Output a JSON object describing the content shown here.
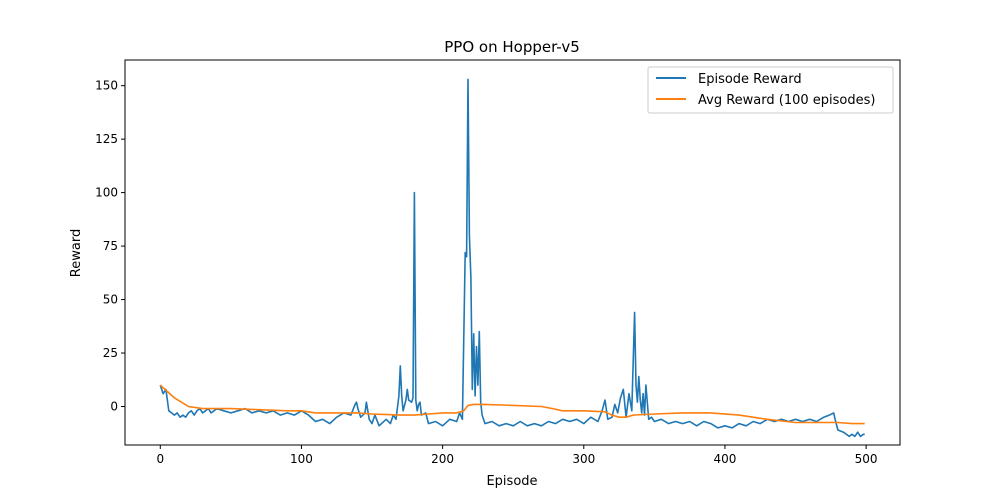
{
  "chart_data": {
    "type": "line",
    "title": "PPO on Hopper-v5",
    "xlabel": "Episode",
    "ylabel": "Reward",
    "xlim": [
      -25,
      524
    ],
    "ylim": [
      -18,
      162
    ],
    "xticks": [
      0,
      100,
      200,
      300,
      400,
      500
    ],
    "yticks": [
      0,
      25,
      50,
      75,
      100,
      125,
      150
    ],
    "grid": false,
    "legend_position": "top-right",
    "series": [
      {
        "name": "Episode Reward",
        "color": "#1f77b4",
        "points": [
          [
            0,
            10
          ],
          [
            2,
            6
          ],
          [
            4,
            8
          ],
          [
            6,
            -2
          ],
          [
            8,
            -3
          ],
          [
            10,
            -4
          ],
          [
            12,
            -3
          ],
          [
            14,
            -5
          ],
          [
            16,
            -4
          ],
          [
            18,
            -5
          ],
          [
            20,
            -3
          ],
          [
            22,
            -2
          ],
          [
            24,
            -4
          ],
          [
            26,
            -2
          ],
          [
            28,
            -1
          ],
          [
            30,
            -3
          ],
          [
            32,
            -2
          ],
          [
            34,
            -1
          ],
          [
            36,
            -3
          ],
          [
            38,
            -2
          ],
          [
            40,
            -1
          ],
          [
            45,
            -2
          ],
          [
            50,
            -3
          ],
          [
            55,
            -2
          ],
          [
            60,
            -1
          ],
          [
            65,
            -3
          ],
          [
            70,
            -2
          ],
          [
            75,
            -3
          ],
          [
            80,
            -2
          ],
          [
            85,
            -4
          ],
          [
            90,
            -3
          ],
          [
            95,
            -4
          ],
          [
            100,
            -2
          ],
          [
            105,
            -4
          ],
          [
            110,
            -7
          ],
          [
            115,
            -6
          ],
          [
            120,
            -8
          ],
          [
            125,
            -5
          ],
          [
            130,
            -3
          ],
          [
            135,
            -4
          ],
          [
            138,
            1
          ],
          [
            139,
            2
          ],
          [
            140,
            -1
          ],
          [
            142,
            -5
          ],
          [
            145,
            -3
          ],
          [
            146,
            2
          ],
          [
            148,
            -6
          ],
          [
            150,
            -8
          ],
          [
            152,
            -4
          ],
          [
            155,
            -9
          ],
          [
            160,
            -6
          ],
          [
            163,
            -8
          ],
          [
            165,
            -4
          ],
          [
            167,
            -6
          ],
          [
            169,
            5
          ],
          [
            170,
            19
          ],
          [
            171,
            5
          ],
          [
            172,
            -2
          ],
          [
            174,
            3
          ],
          [
            175,
            8
          ],
          [
            176,
            3
          ],
          [
            178,
            2
          ],
          [
            179,
            4
          ],
          [
            180,
            100
          ],
          [
            181,
            3
          ],
          [
            182,
            -2
          ],
          [
            183,
            1
          ],
          [
            184,
            2
          ],
          [
            185,
            -4
          ],
          [
            188,
            -3
          ],
          [
            190,
            -8
          ],
          [
            195,
            -7
          ],
          [
            200,
            -9
          ],
          [
            205,
            -6
          ],
          [
            210,
            -7
          ],
          [
            212,
            -3
          ],
          [
            214,
            -6
          ],
          [
            216,
            72
          ],
          [
            217,
            70
          ],
          [
            218,
            153
          ],
          [
            219,
            80
          ],
          [
            220,
            60
          ],
          [
            221,
            8
          ],
          [
            222,
            34
          ],
          [
            223,
            5
          ],
          [
            224,
            28
          ],
          [
            225,
            10
          ],
          [
            226,
            35
          ],
          [
            227,
            2
          ],
          [
            228,
            -4
          ],
          [
            230,
            -8
          ],
          [
            235,
            -7
          ],
          [
            240,
            -9
          ],
          [
            245,
            -8
          ],
          [
            250,
            -9
          ],
          [
            255,
            -7
          ],
          [
            260,
            -9
          ],
          [
            265,
            -8
          ],
          [
            270,
            -9
          ],
          [
            275,
            -7
          ],
          [
            280,
            -8
          ],
          [
            285,
            -6
          ],
          [
            290,
            -7
          ],
          [
            295,
            -6
          ],
          [
            300,
            -8
          ],
          [
            305,
            -5
          ],
          [
            310,
            -7
          ],
          [
            313,
            -2
          ],
          [
            315,
            3
          ],
          [
            317,
            -6
          ],
          [
            320,
            -5
          ],
          [
            322,
            1
          ],
          [
            324,
            -3
          ],
          [
            326,
            4
          ],
          [
            328,
            8
          ],
          [
            330,
            -5
          ],
          [
            332,
            6
          ],
          [
            334,
            -2
          ],
          [
            336,
            44
          ],
          [
            337,
            10
          ],
          [
            338,
            2
          ],
          [
            339,
            14
          ],
          [
            340,
            3
          ],
          [
            341,
            -3
          ],
          [
            342,
            6
          ],
          [
            343,
            -4
          ],
          [
            344,
            10
          ],
          [
            345,
            2
          ],
          [
            346,
            -6
          ],
          [
            348,
            -5
          ],
          [
            350,
            -7
          ],
          [
            355,
            -6
          ],
          [
            360,
            -8
          ],
          [
            365,
            -7
          ],
          [
            370,
            -8
          ],
          [
            375,
            -7
          ],
          [
            380,
            -9
          ],
          [
            385,
            -7
          ],
          [
            390,
            -8
          ],
          [
            395,
            -10
          ],
          [
            400,
            -9
          ],
          [
            405,
            -10
          ],
          [
            410,
            -8
          ],
          [
            415,
            -9
          ],
          [
            420,
            -7
          ],
          [
            425,
            -8
          ],
          [
            430,
            -6
          ],
          [
            435,
            -7
          ],
          [
            440,
            -6
          ],
          [
            445,
            -7
          ],
          [
            450,
            -6
          ],
          [
            455,
            -7
          ],
          [
            460,
            -6
          ],
          [
            465,
            -7
          ],
          [
            470,
            -5
          ],
          [
            474,
            -4
          ],
          [
            477,
            -3
          ],
          [
            478,
            -6
          ],
          [
            480,
            -11
          ],
          [
            484,
            -12
          ],
          [
            488,
            -14
          ],
          [
            490,
            -13
          ],
          [
            492,
            -14
          ],
          [
            494,
            -12
          ],
          [
            496,
            -14
          ],
          [
            498,
            -13
          ],
          [
            499,
            -13
          ]
        ]
      },
      {
        "name": "Avg Reward (100 episodes)",
        "color": "#ff7f0e",
        "points": [
          [
            0,
            10
          ],
          [
            5,
            7
          ],
          [
            10,
            4
          ],
          [
            15,
            2
          ],
          [
            20,
            0
          ],
          [
            30,
            -1
          ],
          [
            50,
            -1
          ],
          [
            70,
            -1.5
          ],
          [
            90,
            -2
          ],
          [
            100,
            -2
          ],
          [
            110,
            -3
          ],
          [
            120,
            -3
          ],
          [
            140,
            -3
          ],
          [
            150,
            -3.5
          ],
          [
            170,
            -4
          ],
          [
            180,
            -4
          ],
          [
            190,
            -3.5
          ],
          [
            200,
            -3
          ],
          [
            210,
            -3
          ],
          [
            215,
            -2
          ],
          [
            218,
            0.5
          ],
          [
            222,
            1
          ],
          [
            230,
            1
          ],
          [
            250,
            0.5
          ],
          [
            270,
            0
          ],
          [
            278,
            -1
          ],
          [
            285,
            -2
          ],
          [
            300,
            -2
          ],
          [
            315,
            -2.5
          ],
          [
            320,
            -4
          ],
          [
            325,
            -5
          ],
          [
            330,
            -5
          ],
          [
            335,
            -4
          ],
          [
            350,
            -3.5
          ],
          [
            370,
            -3
          ],
          [
            390,
            -3
          ],
          [
            410,
            -4
          ],
          [
            430,
            -6
          ],
          [
            450,
            -7.5
          ],
          [
            470,
            -7.5
          ],
          [
            480,
            -7.5
          ],
          [
            490,
            -8
          ],
          [
            499,
            -8
          ]
        ]
      }
    ]
  }
}
